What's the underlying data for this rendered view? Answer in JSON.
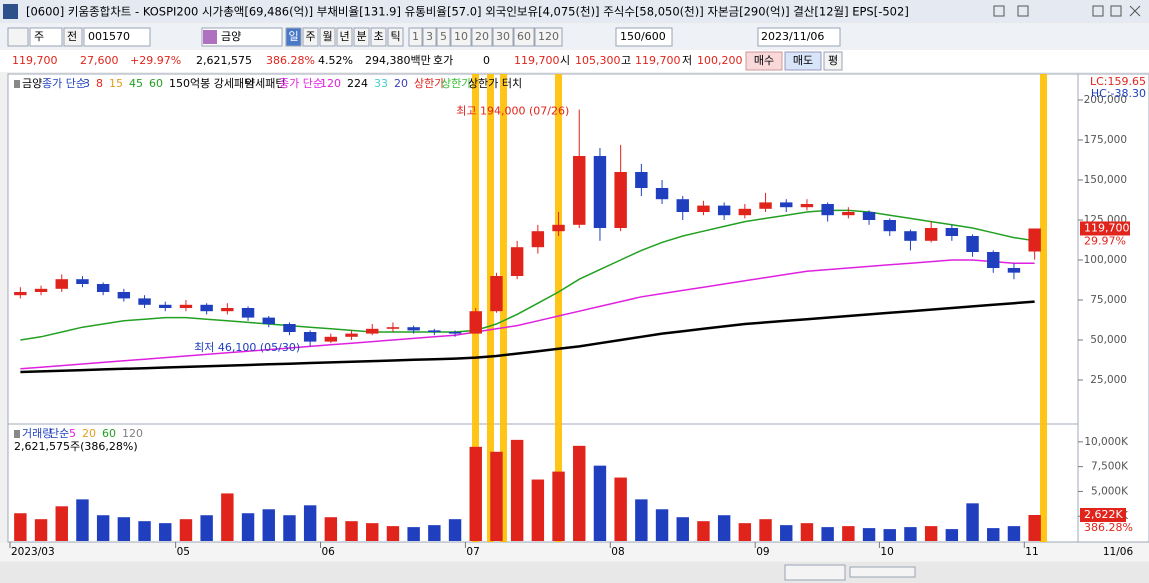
{
  "window": {
    "title": "[0600] 키움종합차트 - KOSPI200 시가총액[69,486(억)] 부채비율[131.9] 유통비율[57.0] 외국인보유[4,075(천)] 주식수[58,050(천)] 자본금[290(억)] 결산[12월] EPS[-502]"
  },
  "toolbar": {
    "unit": "주",
    "scope": "전",
    "code": "001570",
    "name": "금양",
    "periods": [
      "일",
      "주",
      "월",
      "년",
      "분",
      "초",
      "틱"
    ],
    "intervals": [
      "1",
      "3",
      "5",
      "10",
      "20",
      "30",
      "60",
      "120"
    ],
    "count": "150/600",
    "date": "2023/11/06"
  },
  "info": {
    "items": [
      {
        "text": "119,700",
        "color": "#e0241c"
      },
      {
        "text": "27,600",
        "color": "#e0241c"
      },
      {
        "text": "+29.97%",
        "color": "#e0241c"
      },
      {
        "text": "2,621,575",
        "color": "#000000"
      },
      {
        "text": "386.28%",
        "color": "#e0241c"
      },
      {
        "text": "4.52%",
        "color": "#000000"
      },
      {
        "text": "294,380백만",
        "color": "#000000"
      },
      {
        "text": "호가",
        "color": "#000000"
      },
      {
        "text": "0",
        "color": "#000000"
      },
      {
        "text": "119,700",
        "color": "#e0241c"
      },
      {
        "text": "시",
        "color": "#000000"
      },
      {
        "text": "105,300",
        "color": "#e0241c"
      },
      {
        "text": "고",
        "color": "#000000"
      },
      {
        "text": "119,700",
        "color": "#e0241c"
      },
      {
        "text": "저",
        "color": "#000000"
      },
      {
        "text": "100,200",
        "color": "#e0241c"
      }
    ],
    "buy": "매수",
    "sell": "매도",
    "eval": "평"
  },
  "legend": {
    "stock": "금양",
    "ma_label": "종가 단순",
    "ma_periods": [
      {
        "text": "3",
        "color": "#1f3fbf"
      },
      {
        "text": "8",
        "color": "#e0241c"
      },
      {
        "text": "15",
        "color": "#e0a020"
      },
      {
        "text": "45",
        "color": "#22a022"
      }
    ],
    "pattern_up": "150억봉 강세패턴",
    "pattern_down": "약세패턴",
    "ma2_label": "종가 단순",
    "ma2_extra": [
      {
        "text": "33",
        "color": "#40d0d0"
      },
      {
        "text": "20",
        "color": "#4040c0"
      }
    ],
    "limit_up": "상한가",
    "limit_up2": "상한가",
    "limit_touch": "상한가 터치"
  },
  "chart_data": [
    {
      "type": "candlestick",
      "title": "금양",
      "categories": [
        "2023/03",
        null,
        null,
        null,
        null,
        null,
        null,
        null,
        "05",
        null,
        null,
        null,
        null,
        null,
        null,
        "06",
        null,
        null,
        null,
        null,
        null,
        null,
        "07",
        null,
        null,
        null,
        null,
        null,
        null,
        "08",
        null,
        null,
        null,
        null,
        null,
        null,
        "09",
        null,
        null,
        null,
        null,
        null,
        "10",
        null,
        null,
        null,
        null,
        null,
        null,
        "11"
      ],
      "open": [
        78000,
        80000,
        82000,
        88000,
        85000,
        80000,
        76000,
        72000,
        70000,
        72000,
        68000,
        70000,
        64000,
        60000,
        55000,
        49000,
        52000,
        54000,
        57000,
        58000,
        56000,
        55000,
        54000,
        68000,
        90000,
        108000,
        118000,
        122000,
        165000,
        120000,
        155000,
        145000,
        138000,
        130000,
        134000,
        128000,
        132000,
        136000,
        133000,
        135000,
        128000,
        130000,
        125000,
        118000,
        112000,
        120000,
        115000,
        105000,
        95000,
        105300
      ],
      "high": [
        83000,
        84000,
        91000,
        90000,
        86000,
        82000,
        78000,
        74000,
        75000,
        73000,
        73000,
        71000,
        65000,
        61000,
        56000,
        54000,
        56000,
        60000,
        61000,
        59000,
        57000,
        56000,
        70000,
        92000,
        112000,
        122000,
        130000,
        194000,
        170000,
        172000,
        160000,
        150000,
        140000,
        137000,
        136000,
        135000,
        142000,
        138000,
        138000,
        136000,
        133000,
        131000,
        126000,
        119000,
        124000,
        122000,
        116000,
        106000,
        98000,
        119700
      ],
      "low": [
        76000,
        78000,
        80000,
        83000,
        78000,
        74000,
        70000,
        68000,
        68000,
        66000,
        66000,
        62000,
        58000,
        53000,
        46100,
        48000,
        50000,
        53000,
        55000,
        54000,
        53000,
        52000,
        54000,
        67000,
        88000,
        104000,
        115000,
        120000,
        112000,
        118000,
        140000,
        135000,
        125000,
        128000,
        125000,
        126000,
        130000,
        130000,
        131000,
        124000,
        126000,
        122000,
        115000,
        106000,
        111000,
        112000,
        102000,
        92000,
        88000,
        100200
      ],
      "close": [
        80000,
        82000,
        88000,
        85000,
        80000,
        76000,
        72000,
        70000,
        72000,
        68000,
        70000,
        64000,
        60000,
        55000,
        49000,
        52000,
        54000,
        57000,
        58000,
        56000,
        55000,
        54000,
        68000,
        90000,
        108000,
        118000,
        122000,
        165000,
        120000,
        155000,
        145000,
        138000,
        130000,
        134000,
        128000,
        132000,
        136000,
        133000,
        135000,
        128000,
        130000,
        125000,
        118000,
        112000,
        120000,
        115000,
        105000,
        95000,
        92100,
        119700
      ],
      "up_color": "#e0241c",
      "down_color": "#1f3fbf",
      "series": [
        {
          "name": "60",
          "color": "#22a022",
          "values": [
            50000,
            52000,
            55000,
            58000,
            60000,
            62000,
            63000,
            64000,
            64000,
            63000,
            62000,
            61000,
            60000,
            59000,
            58000,
            57000,
            56000,
            55000,
            55000,
            55000,
            55000,
            55000,
            56000,
            60000,
            66000,
            73000,
            80000,
            88000,
            94000,
            100000,
            106000,
            111000,
            115000,
            118000,
            121000,
            124000,
            126000,
            128000,
            130000,
            131000,
            131000,
            130000,
            128000,
            126000,
            124000,
            122000,
            120000,
            117000,
            114000,
            112000
          ]
        },
        {
          "name": "120",
          "color": "#e020e0",
          "values": [
            32000,
            33000,
            34000,
            35000,
            36000,
            37000,
            38000,
            39000,
            40000,
            41000,
            42000,
            43000,
            44000,
            45000,
            46000,
            47000,
            48000,
            49000,
            50000,
            51000,
            52000,
            53000,
            55000,
            57000,
            59000,
            62000,
            65000,
            68000,
            71000,
            74000,
            77000,
            79000,
            81000,
            83000,
            85000,
            87000,
            89000,
            91000,
            93000,
            94000,
            95000,
            96000,
            97000,
            98000,
            99000,
            100000,
            100000,
            99000,
            98000,
            98000
          ]
        },
        {
          "name": "224",
          "color": "#000000",
          "values": [
            30000,
            30400,
            30800,
            31200,
            31600,
            32000,
            32400,
            32800,
            33200,
            33600,
            34000,
            34400,
            34800,
            35200,
            35600,
            36000,
            36400,
            36800,
            37200,
            37600,
            38000,
            38400,
            39000,
            40000,
            41500,
            43000,
            44500,
            46000,
            48000,
            50000,
            52000,
            54000,
            55500,
            57000,
            58500,
            60000,
            61000,
            62000,
            63000,
            64000,
            65000,
            66000,
            67000,
            68000,
            69000,
            70000,
            71000,
            72000,
            73000,
            74000
          ]
        }
      ],
      "ylim": [
        -1250,
        205000
      ],
      "yticks": [
        {
          "value": 25000,
          "label": "25,000"
        },
        {
          "value": 50000,
          "label": "50,000"
        },
        {
          "value": 75000,
          "label": "75,000"
        },
        {
          "value": 100000,
          "label": "100,000"
        },
        {
          "value": 125000,
          "label": "125,000"
        },
        {
          "value": 150000,
          "label": "150,000"
        },
        {
          "value": 175000,
          "label": "175,000"
        },
        {
          "value": 200000,
          "label": "200,000"
        }
      ],
      "max_annotation": "최고 194,000 (07/26)",
      "min_annotation": "최저 46,100 (05/30)",
      "lc_label": "LC:159.65",
      "hc_label": "HC:-38.30",
      "current_label": "119,700",
      "change_label": "29.97%",
      "end_date_label": "11/06"
    },
    {
      "type": "bar",
      "title": "거래량",
      "ma_label": "단순",
      "ma_periods": [
        {
          "text": "5",
          "color": "#e020e0"
        },
        {
          "text": "20",
          "color": "#e0a020"
        },
        {
          "text": "60",
          "color": "#22a022"
        },
        {
          "text": "120",
          "color": "#808080"
        }
      ],
      "summary": "2,621,575주(386,28%)",
      "values": [
        2800,
        2200,
        3500,
        4200,
        2600,
        2400,
        2000,
        1800,
        2200,
        2600,
        4800,
        2800,
        3200,
        2600,
        3600,
        2400,
        2000,
        1800,
        1500,
        1400,
        1600,
        2200,
        9500,
        9000,
        10200,
        6200,
        7000,
        9600,
        7600,
        6400,
        4200,
        3200,
        2400,
        2000,
        2600,
        1800,
        2200,
        1600,
        1800,
        1400,
        1500,
        1300,
        1200,
        1400,
        1500,
        1200,
        3800,
        1300,
        1500,
        2622
      ],
      "ylim": [
        0,
        11700
      ],
      "yticks": [
        {
          "value": 2500,
          "label": "2,500K"
        },
        {
          "value": 5000,
          "label": "5,000K"
        },
        {
          "value": 7500,
          "label": "7,500K"
        },
        {
          "value": 10000,
          "label": "10,000K"
        }
      ],
      "current_label": "2,622K",
      "ratio_label": "386.28%"
    }
  ]
}
